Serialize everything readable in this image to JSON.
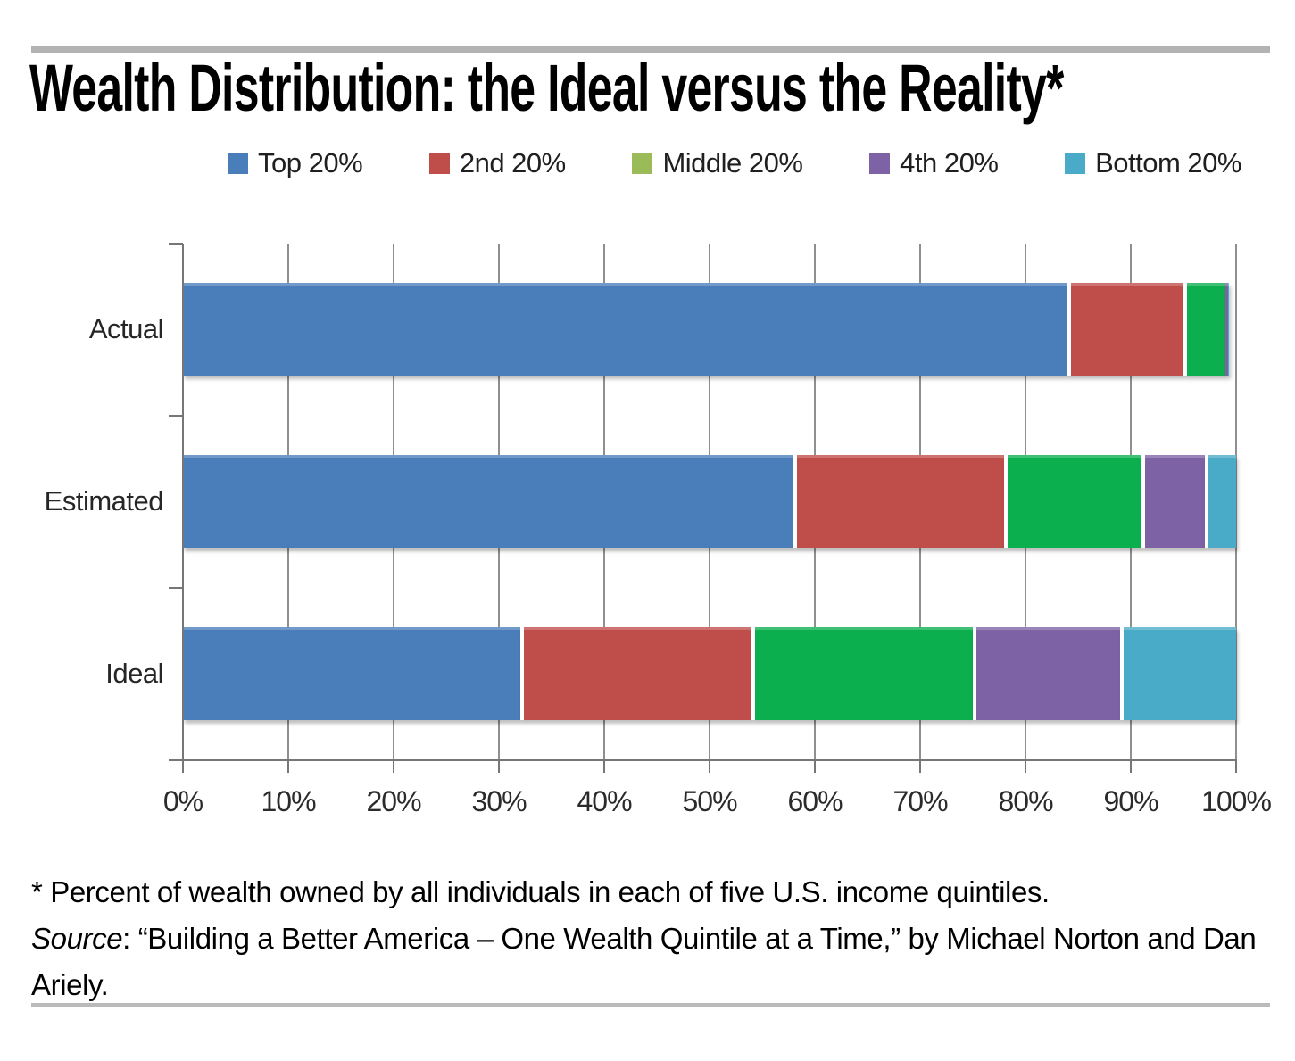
{
  "title": "Wealth Distribution: the Ideal versus the Reality*",
  "footnote": {
    "note": "* Percent of wealth owned by all individuals in each of five U.S. income quintiles.",
    "source_label": "Source",
    "source_rest": ": “Building a Better America – One Wealth Quintile at a Time,” by Michael Norton and Dan Ariely."
  },
  "colors": {
    "grid": "#8f8f8f",
    "axis": "#767676",
    "rule": "#b3b3b3",
    "bar_blue": "#4A7EBB",
    "bar_red": "#BF4D4A",
    "bar_green": "#0BAF4D",
    "bar_purple": "#7D63A5",
    "bar_cyan": "#49ABC8",
    "legend_green": "#9BBB59"
  },
  "chart_data": {
    "type": "bar",
    "orientation": "horizontal",
    "stacked": true,
    "grid": true,
    "legend_position": "top",
    "categories": [
      "Actual",
      "Estimated",
      "Ideal"
    ],
    "series": [
      {
        "name": "Top 20%",
        "color": "#4A7EBB",
        "legend_color": "#4A7EBB",
        "values": [
          84,
          58,
          32
        ]
      },
      {
        "name": "2nd 20%",
        "color": "#BF4D4A",
        "legend_color": "#BF4D4A",
        "values": [
          11,
          20,
          22
        ]
      },
      {
        "name": "Middle 20%",
        "color": "#0BAF4D",
        "legend_color": "#9BBB59",
        "values": [
          4,
          13,
          21
        ]
      },
      {
        "name": "4th 20%",
        "color": "#7D63A5",
        "legend_color": "#7D63A5",
        "values": [
          0.2,
          6,
          14
        ]
      },
      {
        "name": "Bottom 20%",
        "color": "#49ABC8",
        "legend_color": "#49ABC8",
        "values": [
          0.1,
          3,
          11
        ]
      }
    ],
    "x_axis": {
      "min": 0,
      "max": 100,
      "tick_step": 10,
      "tick_labels": [
        "0%",
        "10%",
        "20%",
        "30%",
        "40%",
        "50%",
        "60%",
        "70%",
        "80%",
        "90%",
        "100%"
      ]
    },
    "units": "percent of total wealth"
  }
}
